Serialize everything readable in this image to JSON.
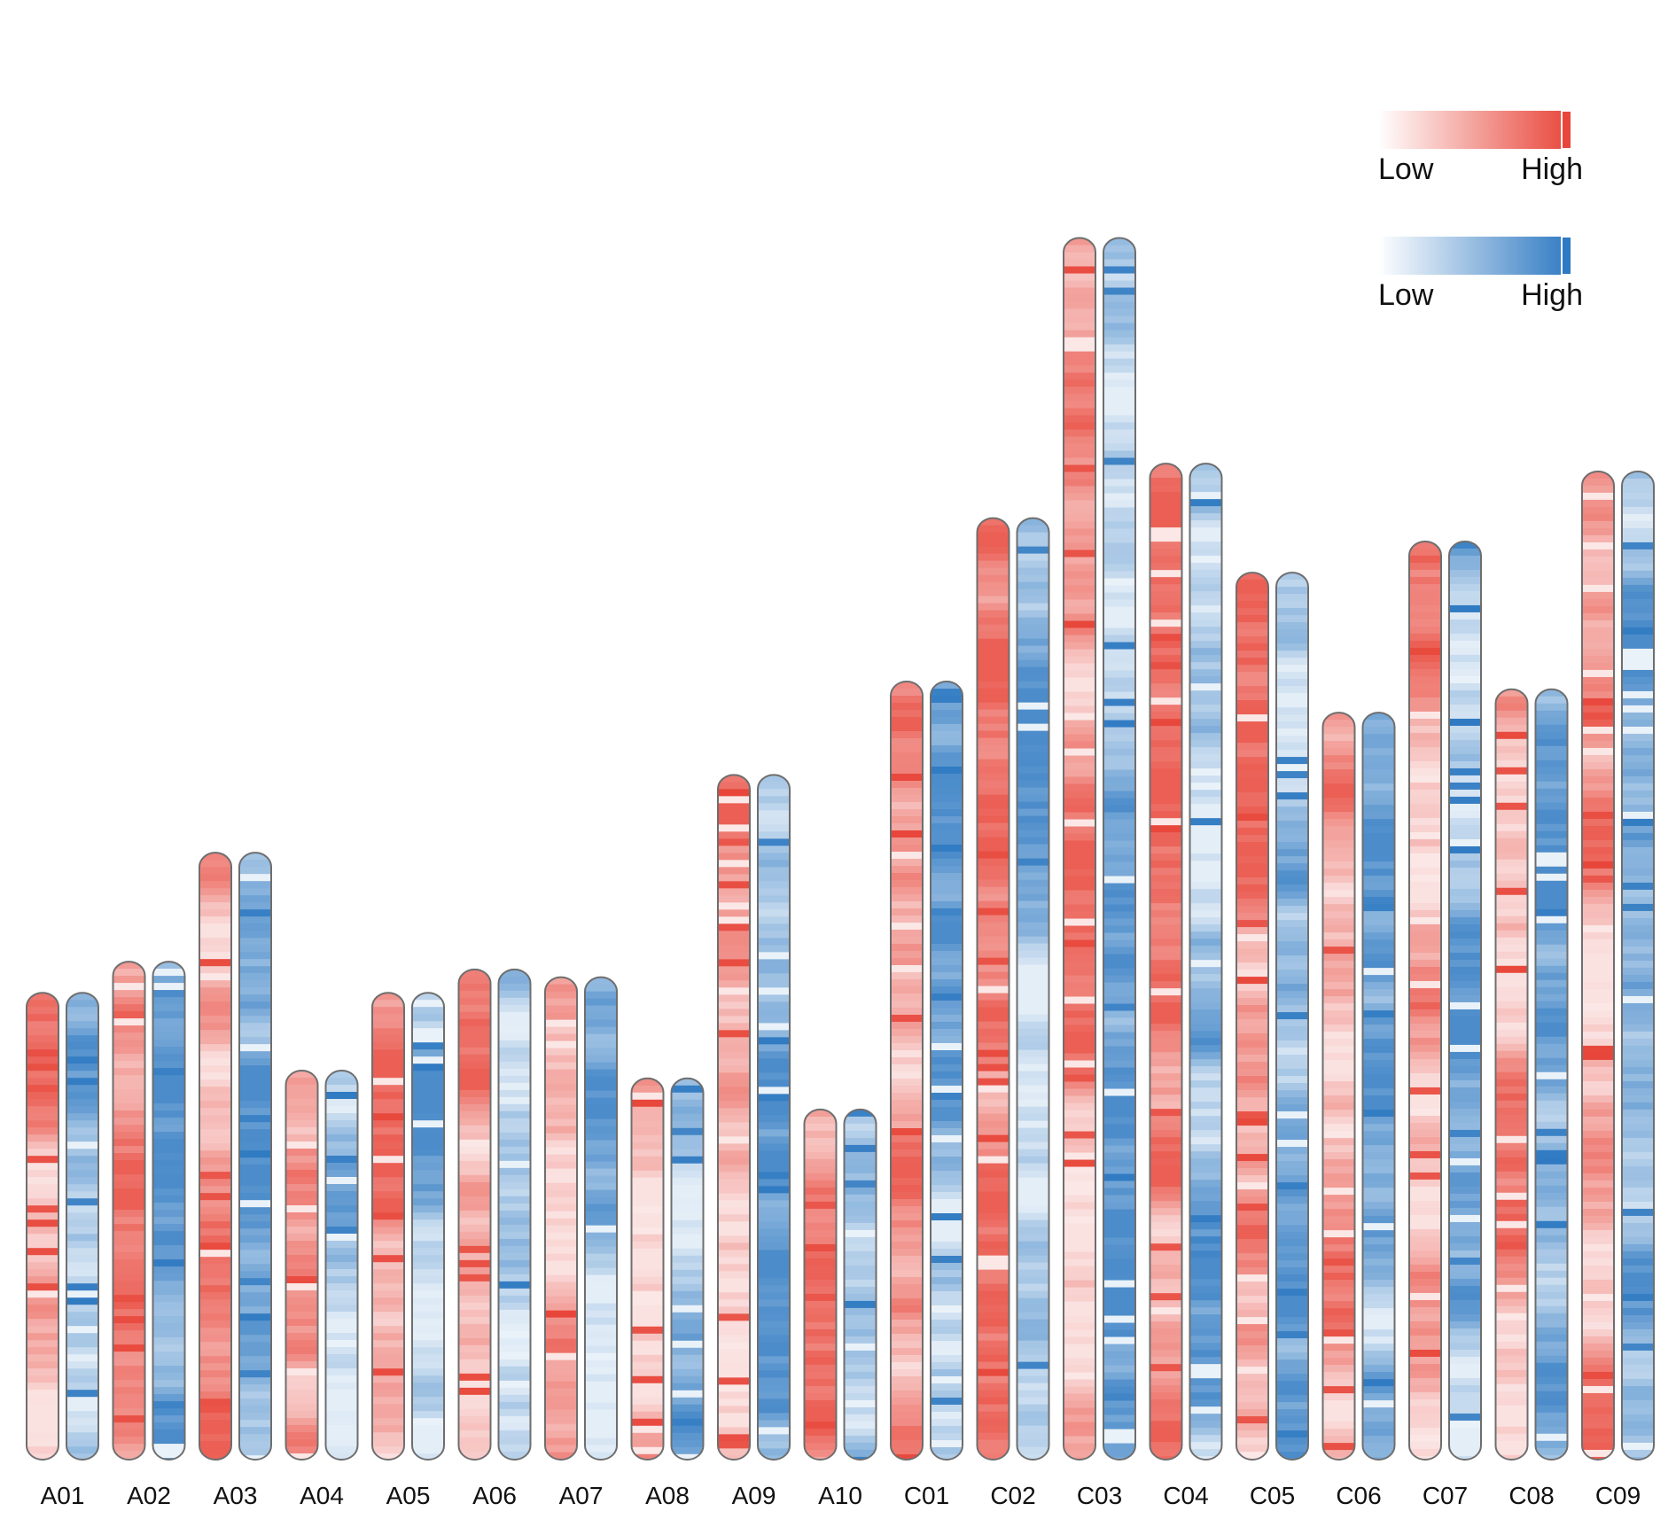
{
  "chart_data": {
    "type": "heatmap",
    "title": "",
    "description_of_encoding": "paired density tracks per chromosome (red track and blue track); colour intensity from Low to High",
    "chromosomes": [
      {
        "name": "A01",
        "length": 60
      },
      {
        "name": "A02",
        "length": 64
      },
      {
        "name": "A03",
        "length": 78
      },
      {
        "name": "A04",
        "length": 50
      },
      {
        "name": "A05",
        "length": 60
      },
      {
        "name": "A06",
        "length": 63
      },
      {
        "name": "A07",
        "length": 62
      },
      {
        "name": "A08",
        "length": 49
      },
      {
        "name": "A09",
        "length": 88
      },
      {
        "name": "A10",
        "length": 45
      },
      {
        "name": "C01",
        "length": 100
      },
      {
        "name": "C02",
        "length": 121
      },
      {
        "name": "C03",
        "length": 157
      },
      {
        "name": "C04",
        "length": 128
      },
      {
        "name": "C05",
        "length": 114
      },
      {
        "name": "C06",
        "length": 96
      },
      {
        "name": "C07",
        "length": 118
      },
      {
        "name": "C08",
        "length": 99
      },
      {
        "name": "C09",
        "length": 127
      }
    ],
    "series": [
      {
        "name": "red-track",
        "color_low": "#fbeaea",
        "color_high": "#e8463a"
      },
      {
        "name": "blue-track",
        "color_low": "#eef4fa",
        "color_high": "#2f7ac2"
      }
    ],
    "legend": [
      {
        "name": "red-scale",
        "low_label": "Low",
        "high_label": "High",
        "color_low": "#ffffff",
        "color_high": "#e8463a"
      },
      {
        "name": "blue-scale",
        "low_label": "Low",
        "high_label": "High",
        "color_low": "#ffffff",
        "color_high": "#2f7ac2"
      }
    ],
    "legend_position": "top-right"
  }
}
